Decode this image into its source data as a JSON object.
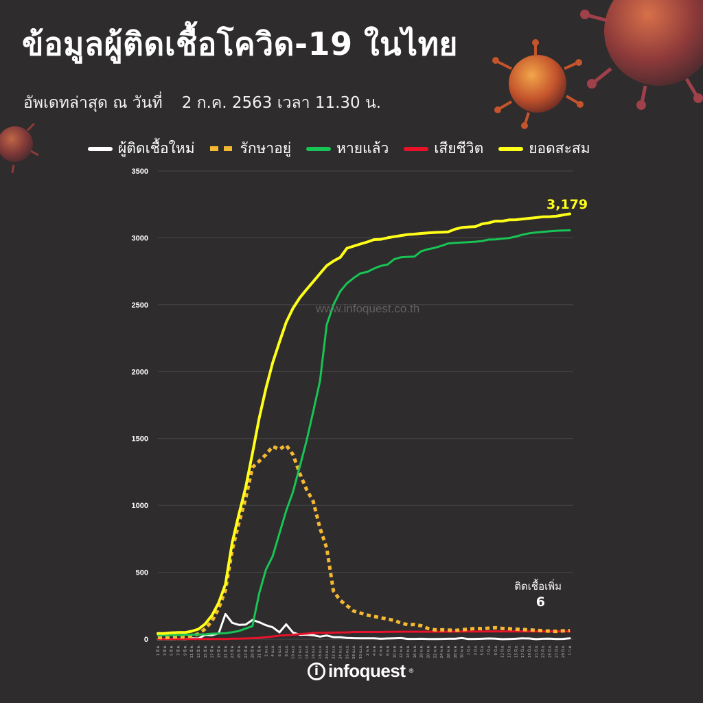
{
  "header": {
    "title": "ข้อมูลผู้ติดเชื้อโควิด-19 ในไทย",
    "updated_label": "อัพเดทล่าสุด ณ วันที่",
    "updated_value": "2 ก.ค. 2563 เวลา 11.30 น."
  },
  "watermark": "www.infoquest.co.th",
  "logo": {
    "text": "infoquest",
    "mark": "i"
  },
  "annotation": {
    "label": "ติดเชื้อเพิ่ม",
    "value": "6"
  },
  "last_total_label": "3,179",
  "colors": {
    "background": "#2e2c2c",
    "new": "#ffffff",
    "active": "#f5b833",
    "recovered": "#18c455",
    "deaths": "#e8132a",
    "total": "#ffff1a"
  },
  "chart_data": {
    "type": "line",
    "title": "ข้อมูลผู้ติดเชื้อโควิด-19 ในไทย",
    "xlabel": "",
    "ylabel": "",
    "ylim": [
      0,
      3500
    ],
    "yticks": [
      0,
      500,
      1000,
      1500,
      2000,
      2500,
      3000,
      3500
    ],
    "grid": true,
    "legend_position": "top",
    "categories": [
      "1 มี.ค.",
      "3 มี.ค.",
      "5 มี.ค.",
      "7 มี.ค.",
      "9 มี.ค.",
      "11 มี.ค.",
      "13 มี.ค.",
      "15 มี.ค.",
      "17 มี.ค.",
      "19 มี.ค.",
      "21 มี.ค.",
      "23 มี.ค.",
      "25 มี.ค.",
      "27 มี.ค.",
      "29 มี.ค.",
      "31 มี.ค.",
      "2 เม.ย.",
      "4 เม.ย.",
      "6 เม.ย.",
      "8 เม.ย.",
      "10 เม.ย.",
      "12 เม.ย.",
      "14 เม.ย.",
      "16 เม.ย.",
      "18 เม.ย.",
      "20 เม.ย.",
      "22 เม.ย.",
      "24 เม.ย.",
      "26 เม.ย.",
      "28 เม.ย.",
      "30 เม.ย.",
      "2 พ.ค.",
      "4 พ.ค.",
      "6 พ.ค.",
      "8 พ.ค.",
      "10 พ.ค.",
      "12 พ.ค.",
      "14 พ.ค.",
      "16 พ.ค.",
      "18 พ.ค.",
      "20 พ.ค.",
      "22 พ.ค.",
      "24 พ.ค.",
      "26 พ.ค.",
      "28 พ.ค.",
      "30 พ.ค.",
      "1 มิ.ย.",
      "3 มิ.ย.",
      "5 มิ.ย.",
      "7 มิ.ย.",
      "9 มิ.ย.",
      "11 มิ.ย.",
      "13 มิ.ย.",
      "15 มิ.ย.",
      "17 มิ.ย.",
      "19 มิ.ย.",
      "21 มิ.ย.",
      "23 มิ.ย.",
      "25 มิ.ย.",
      "27 มิ.ย.",
      "29 มิ.ย.",
      "1 ก.ค."
    ],
    "series": [
      {
        "key": "new",
        "name": "ผู้ติดเชื้อใหม่",
        "style": "solid",
        "values": [
          0,
          1,
          0,
          2,
          0,
          6,
          5,
          32,
          30,
          43,
          188,
          122,
          107,
          109,
          143,
          127,
          104,
          89,
          51,
          111,
          50,
          33,
          34,
          30,
          19,
          27,
          15,
          15,
          9,
          7,
          6,
          6,
          6,
          3,
          5,
          6,
          8,
          2,
          2,
          3,
          1,
          1,
          2,
          3,
          3,
          8,
          1,
          2,
          3,
          5,
          4,
          0,
          1,
          3,
          6,
          5,
          0,
          3,
          4,
          1,
          2,
          6
        ]
      },
      {
        "key": "active",
        "name": "รักษาอยู่",
        "style": "dashed",
        "values": [
          13,
          11,
          15,
          18,
          16,
          24,
          39,
          77,
          135,
          229,
          366,
          665,
          869,
          1052,
          1284,
          1330,
          1380,
          1440,
          1420,
          1450,
          1380,
          1240,
          1120,
          1030,
          830,
          680,
          360,
          290,
          250,
          210,
          195,
          180,
          170,
          160,
          150,
          140,
          120,
          108,
          110,
          100,
          80,
          70,
          70,
          68,
          65,
          70,
          75,
          80,
          78,
          82,
          85,
          80,
          78,
          75,
          72,
          70,
          66,
          63,
          60,
          58,
          62,
          64
        ]
      },
      {
        "key": "recovered",
        "name": "หายแล้ว",
        "style": "solid",
        "values": [
          28,
          31,
          31,
          31,
          33,
          34,
          35,
          36,
          41,
          42,
          44,
          52,
          61,
          79,
          97,
          342,
          520,
          620,
          790,
          960,
          1100,
          1289,
          1480,
          1700,
          1930,
          2350,
          2500,
          2600,
          2660,
          2700,
          2735,
          2745,
          2770,
          2790,
          2800,
          2840,
          2855,
          2858,
          2860,
          2900,
          2915,
          2925,
          2940,
          2958,
          2962,
          2965,
          2968,
          2971,
          2976,
          2987,
          2988,
          2994,
          2998,
          3010,
          3023,
          3034,
          3040,
          3045,
          3049,
          3053,
          3055,
          3056
        ]
      },
      {
        "key": "deaths",
        "name": "เสียชีวิต",
        "style": "solid",
        "values": [
          1,
          1,
          1,
          1,
          1,
          1,
          1,
          1,
          1,
          1,
          1,
          4,
          4,
          5,
          7,
          10,
          15,
          20,
          26,
          30,
          33,
          38,
          41,
          46,
          47,
          47,
          49,
          50,
          51,
          54,
          54,
          54,
          54,
          54,
          55,
          55,
          56,
          56,
          56,
          56,
          56,
          56,
          56,
          56,
          57,
          57,
          57,
          57,
          58,
          58,
          58,
          58,
          58,
          58,
          58,
          58,
          58,
          58,
          58,
          58,
          58,
          58
        ]
      },
      {
        "key": "total",
        "name": "ยอดสะสม",
        "style": "solid",
        "values": [
          42,
          43,
          47,
          50,
          50,
          59,
          75,
          114,
          177,
          272,
          411,
          721,
          934,
          1136,
          1388,
          1651,
          1875,
          2067,
          2220,
          2369,
          2473,
          2551,
          2613,
          2672,
          2733,
          2792,
          2826,
          2854,
          2922,
          2938,
          2954,
          2969,
          2987,
          2989,
          3000,
          3009,
          3017,
          3025,
          3028,
          3033,
          3037,
          3040,
          3042,
          3045,
          3065,
          3077,
          3081,
          3084,
          3104,
          3112,
          3125,
          3125,
          3134,
          3135,
          3141,
          3146,
          3151,
          3157,
          3158,
          3162,
          3171,
          3179
        ]
      }
    ]
  }
}
